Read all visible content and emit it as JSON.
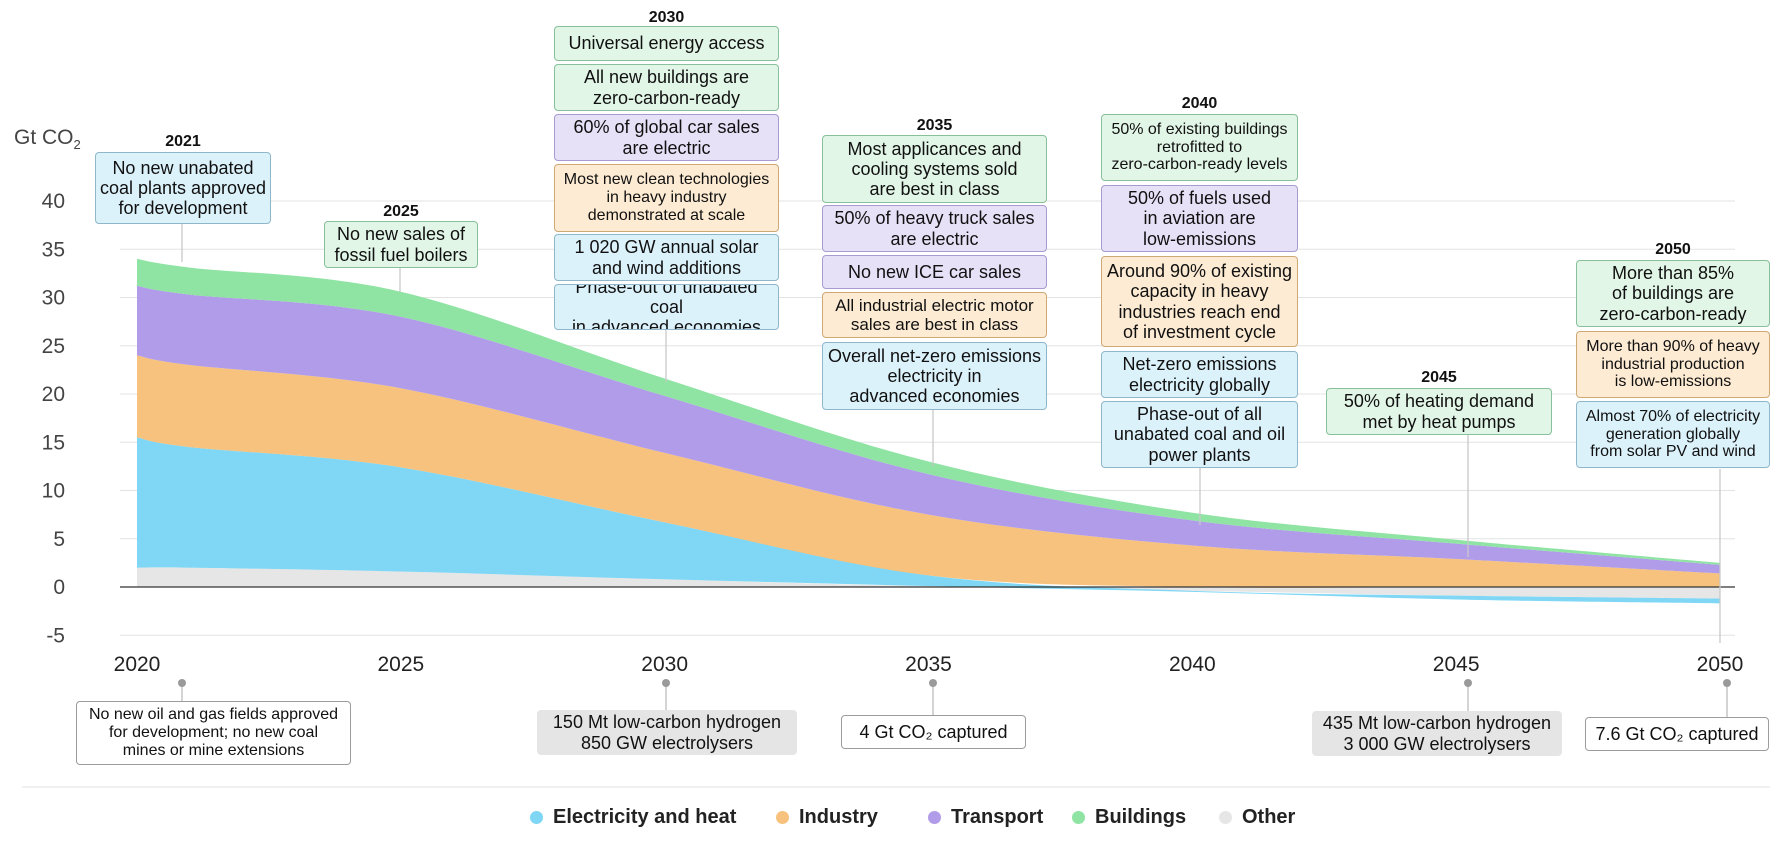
{
  "colors": {
    "electricity": "#7fd6f5",
    "industry": "#f6c27d",
    "transport": "#b19ce9",
    "buildings": "#8fe3a3",
    "other": "#e6e6e6"
  },
  "chart_data": {
    "type": "area",
    "ylabel": "Gt CO2",
    "ylim": [
      -5,
      40
    ],
    "yticks": [
      -5,
      0,
      5,
      10,
      15,
      20,
      25,
      30,
      35,
      40
    ],
    "xticks": [
      2020,
      2025,
      2030,
      2035,
      2040,
      2045,
      2050
    ],
    "grid": true,
    "legend_position": "bottom",
    "x": [
      2020,
      2021,
      2025,
      2030,
      2035,
      2040,
      2045,
      2050
    ],
    "series": [
      {
        "name": "Other",
        "color_key": "other",
        "values": [
          2.0,
          2.0,
          1.6,
          0.8,
          0.1,
          -0.4,
          -0.9,
          -1.2
        ]
      },
      {
        "name": "Electricity and heat",
        "color_key": "electricity",
        "values": [
          13.5,
          12.5,
          10.8,
          5.9,
          1.1,
          -0.1,
          -0.4,
          -0.5
        ]
      },
      {
        "name": "Industry",
        "color_key": "industry",
        "values": [
          8.5,
          8.5,
          8.2,
          7.2,
          6.3,
          4.3,
          2.9,
          1.4
        ]
      },
      {
        "name": "Transport",
        "color_key": "transport",
        "values": [
          7.2,
          7.3,
          7.4,
          5.9,
          4.2,
          2.6,
          1.6,
          0.9
        ]
      },
      {
        "name": "Buildings",
        "color_key": "buildings",
        "values": [
          2.8,
          2.8,
          2.6,
          1.8,
          1.3,
          0.8,
          0.4,
          0.2
        ]
      }
    ]
  },
  "yaxis": {
    "label": "Gt CO",
    "label_sub": "2",
    "ticks": [
      "40",
      "35",
      "30",
      "25",
      "20",
      "15",
      "10",
      "5",
      "0",
      "-5"
    ]
  },
  "xaxis": {
    "ticks": [
      "2020",
      "2025",
      "2030",
      "2035",
      "2040",
      "2045",
      "2050"
    ]
  },
  "milestones": {
    "y2021": {
      "year": "2021",
      "items": [
        {
          "text": "No new unabated\ncoal plants approved\nfor development",
          "cat": "electricity"
        }
      ]
    },
    "y2025": {
      "year": "2025",
      "items": [
        {
          "text": "No new sales of\nfossil fuel boilers",
          "cat": "buildings"
        }
      ]
    },
    "y2030": {
      "year": "2030",
      "items": [
        {
          "text": "Universal energy access",
          "cat": "buildings"
        },
        {
          "text": "All new buildings are\nzero-carbon-ready",
          "cat": "buildings"
        },
        {
          "text": "60% of global car sales\nare electric",
          "cat": "transport"
        },
        {
          "text": "Most new clean technologies\nin heavy industry\ndemonstrated at scale",
          "cat": "industry"
        },
        {
          "text": "1 020 GW annual solar\nand wind additions",
          "cat": "electricity"
        },
        {
          "text": "Phase-out of unabated coal\nin advanced economies",
          "cat": "electricity"
        }
      ]
    },
    "y2035": {
      "year": "2035",
      "items": [
        {
          "text": "Most applicances and\ncooling systems sold\nare best in class",
          "cat": "buildings"
        },
        {
          "text": "50% of heavy truck sales\nare electric",
          "cat": "transport"
        },
        {
          "text": "No new ICE car sales",
          "cat": "transport"
        },
        {
          "text": "All industrial electric motor\nsales are best in class",
          "cat": "industry"
        },
        {
          "text": "Overall net-zero emissions\nelectricity in\nadvanced economies",
          "cat": "electricity"
        }
      ]
    },
    "y2040": {
      "year": "2040",
      "items": [
        {
          "text": "50% of existing buildings\nretrofitted to\nzero-carbon-ready levels",
          "cat": "buildings"
        },
        {
          "text": "50% of fuels used\nin aviation are\nlow-emissions",
          "cat": "transport"
        },
        {
          "text": "Around 90% of existing\ncapacity in heavy\nindustries reach end\nof investment cycle",
          "cat": "industry"
        },
        {
          "text": "Net-zero emissions\nelectricity globally",
          "cat": "electricity"
        },
        {
          "text": "Phase-out of all\nunabated coal and oil\npower plants",
          "cat": "electricity"
        }
      ]
    },
    "y2045": {
      "year": "2045",
      "items": [
        {
          "text": "50% of heating demand\nmet by heat pumps",
          "cat": "buildings"
        }
      ]
    },
    "y2050": {
      "year": "2050",
      "items": [
        {
          "text": "More than 85%\nof buildings are\nzero-carbon-ready",
          "cat": "buildings"
        },
        {
          "text": "More than 90% of heavy\nindustrial production\nis low-emissions",
          "cat": "industry"
        },
        {
          "text": "Almost 70% of electricity\ngeneration globally\nfrom solar PV and wind",
          "cat": "electricity"
        }
      ]
    }
  },
  "bottom_notes": [
    {
      "text": "No new oil and gas fields approved\nfor development; no new coal\nmines or mine extensions",
      "style": "other"
    },
    {
      "text": "150 Mt low-carbon hydrogen\n850 GW electrolysers",
      "style": "gray"
    },
    {
      "text": "4 Gt CO₂ captured",
      "style": "other"
    },
    {
      "text": "435 Mt low-carbon hydrogen\n3 000 GW electrolysers",
      "style": "gray"
    },
    {
      "text": "7.6 Gt CO₂ captured",
      "style": "other"
    }
  ],
  "legend": [
    {
      "label": "Electricity and heat",
      "color_key": "electricity"
    },
    {
      "label": "Industry",
      "color_key": "industry"
    },
    {
      "label": "Transport",
      "color_key": "transport"
    },
    {
      "label": "Buildings",
      "color_key": "buildings"
    },
    {
      "label": "Other",
      "color_key": "other"
    }
  ]
}
